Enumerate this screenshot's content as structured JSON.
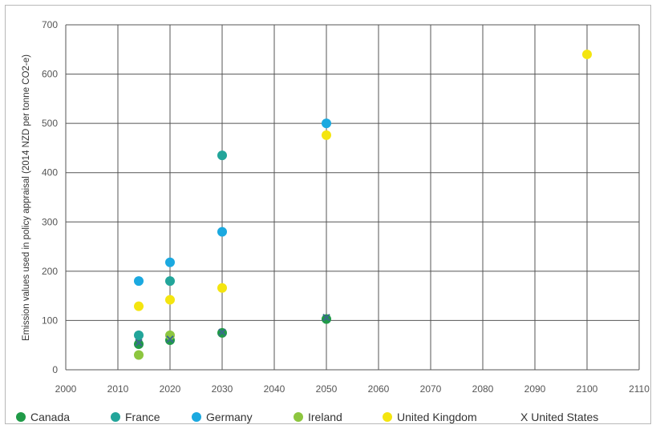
{
  "chart_data": {
    "type": "scatter",
    "title": "",
    "xlabel": "",
    "ylabel": "Emission values used in policy appraisal (2014 NZD per tonne CO2-e)",
    "xlim": [
      2000,
      2110
    ],
    "ylim": [
      0,
      700
    ],
    "x_ticks": [
      "2000",
      "2010",
      "2020",
      "2030",
      "2040",
      "2050",
      "2060",
      "2070",
      "2080",
      "2090",
      "2100",
      "2110"
    ],
    "y_ticks": [
      "0",
      "100",
      "200",
      "300",
      "400",
      "500",
      "600",
      "700"
    ],
    "grid": true,
    "legend_position": "bottom",
    "series": [
      {
        "name": "Canada",
        "marker": "circle",
        "color": "#1f9a47",
        "points": [
          [
            2014,
            52
          ],
          [
            2020,
            60
          ],
          [
            2030,
            75
          ],
          [
            2050,
            103
          ]
        ]
      },
      {
        "name": "France",
        "marker": "circle",
        "color": "#22a59a",
        "points": [
          [
            2014,
            70
          ],
          [
            2020,
            180
          ],
          [
            2030,
            435
          ]
        ]
      },
      {
        "name": "Germany",
        "marker": "circle",
        "color": "#1ba9e0",
        "points": [
          [
            2014,
            180
          ],
          [
            2020,
            218
          ],
          [
            2030,
            280
          ],
          [
            2050,
            500
          ]
        ]
      },
      {
        "name": "Ireland",
        "marker": "circle",
        "color": "#8dc63f",
        "points": [
          [
            2014,
            30
          ],
          [
            2020,
            70
          ]
        ]
      },
      {
        "name": "United Kingdom",
        "marker": "circle",
        "color": "#f4e50f",
        "points": [
          [
            2014,
            129
          ],
          [
            2020,
            142
          ],
          [
            2030,
            166
          ],
          [
            2050,
            476
          ],
          [
            2100,
            640
          ]
        ]
      },
      {
        "name": "United States",
        "marker": "x",
        "color": "#3a6b8c",
        "points": [
          [
            2014,
            55
          ],
          [
            2020,
            62
          ],
          [
            2030,
            76
          ],
          [
            2050,
            106
          ]
        ]
      }
    ],
    "legend": [
      {
        "label": "Canada",
        "marker": "circle",
        "color": "#1f9a47"
      },
      {
        "label": "France",
        "marker": "circle",
        "color": "#22a59a"
      },
      {
        "label": "Germany",
        "marker": "circle",
        "color": "#1ba9e0"
      },
      {
        "label": "Ireland",
        "marker": "circle",
        "color": "#8dc63f"
      },
      {
        "label": "United Kingdom",
        "marker": "circle",
        "color": "#f4e50f"
      },
      {
        "label": "X United States",
        "marker": "none",
        "color": "#333333"
      }
    ]
  }
}
